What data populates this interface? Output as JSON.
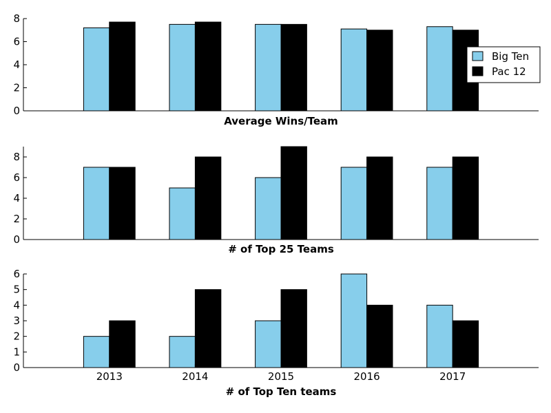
{
  "chart_data": [
    {
      "type": "bar",
      "categories": [
        "2013",
        "2014",
        "2015",
        "2016",
        "2017"
      ],
      "series": [
        {
          "name": "Big Ten",
          "values": [
            7.2,
            7.5,
            7.5,
            7.1,
            7.3
          ]
        },
        {
          "name": "Pac 12",
          "values": [
            7.7,
            7.7,
            7.5,
            7.0,
            7.0
          ]
        }
      ],
      "xlabel": "Average Wins/Team",
      "ylim": [
        0,
        8
      ],
      "yticks": [
        0,
        2,
        4,
        6,
        8
      ],
      "show_xticks": false,
      "grid": false,
      "legend_position": "right"
    },
    {
      "type": "bar",
      "categories": [
        "2013",
        "2014",
        "2015",
        "2016",
        "2017"
      ],
      "series": [
        {
          "name": "Big Ten",
          "values": [
            7,
            5,
            6,
            7,
            7
          ]
        },
        {
          "name": "Pac 12",
          "values": [
            7,
            8,
            9,
            8,
            8
          ]
        }
      ],
      "xlabel": "# of Top 25 Teams",
      "ylim": [
        0,
        9
      ],
      "yticks": [
        0,
        2,
        4,
        6,
        8
      ],
      "show_xticks": false,
      "grid": false
    },
    {
      "type": "bar",
      "categories": [
        "2013",
        "2014",
        "2015",
        "2016",
        "2017"
      ],
      "series": [
        {
          "name": "Big Ten",
          "values": [
            2,
            2,
            3,
            6,
            4
          ]
        },
        {
          "name": "Pac 12",
          "values": [
            3,
            5,
            5,
            4,
            3
          ]
        }
      ],
      "xlabel": "# of Top Ten teams",
      "ylim": [
        0,
        6
      ],
      "yticks": [
        0,
        1,
        2,
        3,
        4,
        5,
        6
      ],
      "show_xticks": true,
      "grid": false
    }
  ],
  "colors": {
    "big_ten": "#87ceeb",
    "pac_12": "#000000"
  }
}
